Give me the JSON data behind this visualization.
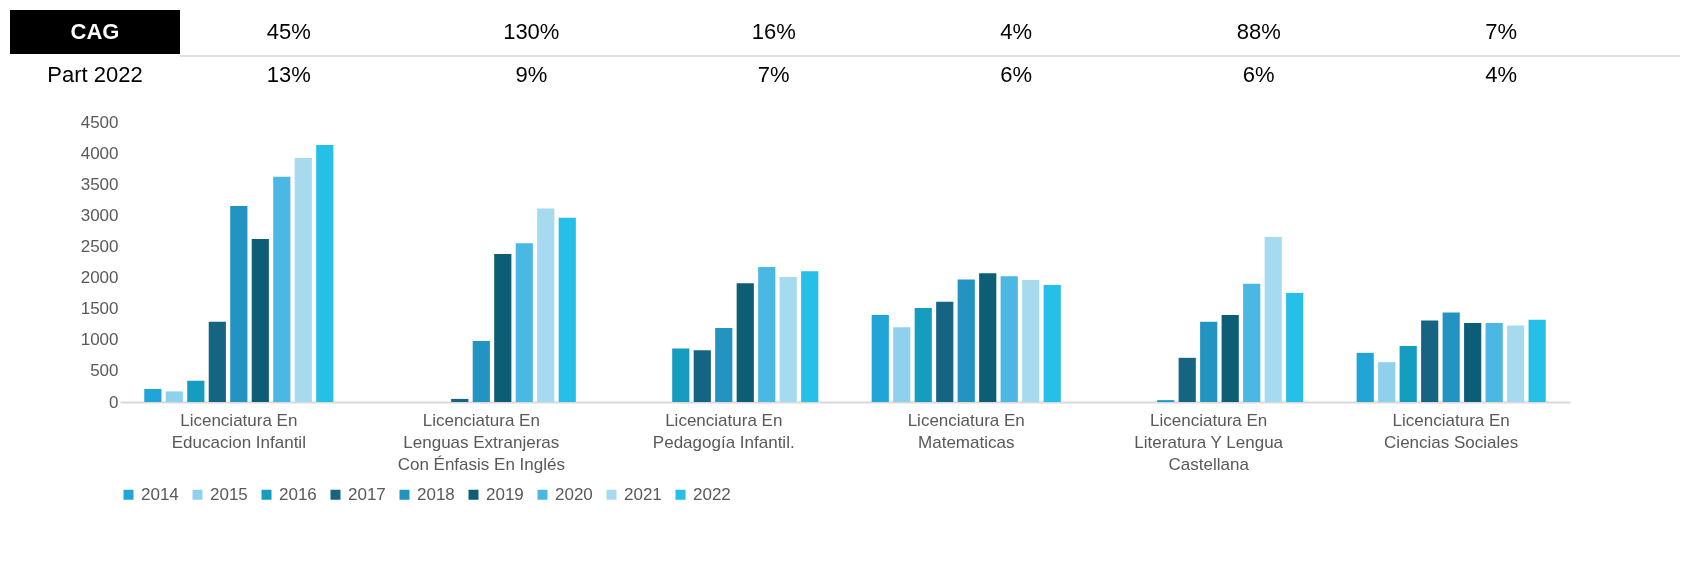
{
  "chart_data": {
    "type": "bar",
    "categories": [
      "Licenciatura En Educacion Infantil",
      "Licenciatura En Lenguas Extranjeras Con Énfasis En Inglés",
      "Licenciatura En Pedagogía Infantil.",
      "Licenciatura En Matematicas",
      "Licenciatura En Literatura Y Lengua Castellana",
      "Licenciatura En Ciencias Sociales"
    ],
    "series": [
      {
        "name": "2014",
        "color": "#21a4d6",
        "values": [
          210,
          null,
          null,
          1400,
          null,
          790
        ]
      },
      {
        "name": "2015",
        "color": "#8fd0ec",
        "values": [
          170,
          null,
          null,
          1200,
          null,
          640
        ]
      },
      {
        "name": "2016",
        "color": "#159dc0",
        "values": [
          340,
          null,
          860,
          1510,
          30,
          900
        ]
      },
      {
        "name": "2017",
        "color": "#156482",
        "values": [
          1290,
          50,
          830,
          1610,
          710,
          1310
        ]
      },
      {
        "name": "2018",
        "color": "#2394c1",
        "values": [
          3150,
          980,
          1190,
          1970,
          1290,
          1440
        ]
      },
      {
        "name": "2019",
        "color": "#0d5e74",
        "values": [
          2620,
          2380,
          1910,
          2070,
          1400,
          1270
        ]
      },
      {
        "name": "2020",
        "color": "#4ab8e3",
        "values": [
          3620,
          2550,
          2170,
          2020,
          1900,
          1270
        ]
      },
      {
        "name": "2021",
        "color": "#a6dbef",
        "values": [
          3920,
          3110,
          2010,
          1960,
          2650,
          1230
        ]
      },
      {
        "name": "2022",
        "color": "#25bfe8",
        "values": [
          4130,
          2960,
          2100,
          1880,
          1750,
          1320
        ]
      }
    ],
    "ylim": [
      0,
      4500
    ],
    "yticks": [
      0,
      500,
      1000,
      1500,
      2000,
      2500,
      3000,
      3500,
      4000,
      4500
    ],
    "grid": false,
    "legend": "bottom",
    "annotations": [
      "CAG",
      "45%",
      "130%",
      "16%",
      "4%",
      "88%",
      "7%",
      "Part 2022",
      "13%",
      "9%",
      "7%",
      "6%",
      "6%",
      "4%"
    ]
  }
}
